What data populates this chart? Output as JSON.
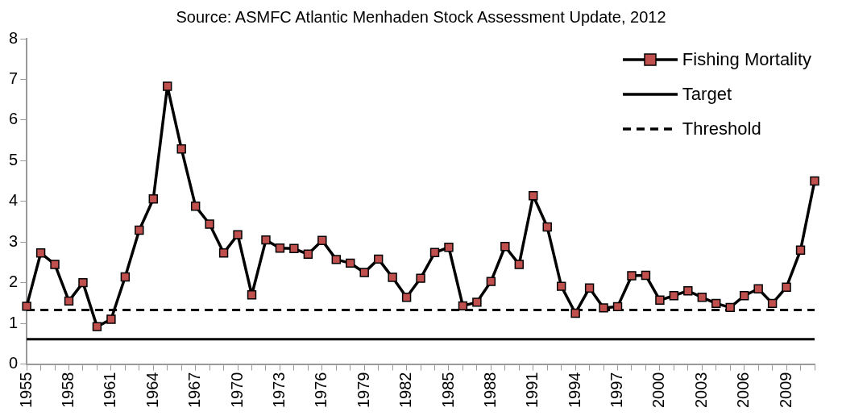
{
  "chart_data": {
    "type": "line",
    "annotations": [
      "Source:  ASMFC Atlantic Menhaden Stock Assessment Update, 2012"
    ],
    "categories": [
      "1955",
      null,
      null,
      "1958",
      null,
      null,
      "1961",
      null,
      null,
      "1964",
      null,
      null,
      "1967",
      null,
      null,
      "1970",
      null,
      null,
      "1973",
      null,
      null,
      "1976",
      null,
      null,
      "1979",
      null,
      null,
      "1982",
      null,
      null,
      "1985",
      null,
      null,
      "1988",
      null,
      null,
      "1991",
      null,
      null,
      "1994",
      null,
      null,
      "1997",
      null,
      null,
      "2000",
      null,
      null,
      "2003",
      null,
      null,
      "2006",
      null,
      null,
      "2009",
      null,
      null
    ],
    "series": [
      {
        "name": "Fishing Mortality",
        "color": "#c0504d",
        "marker": "square",
        "line_style": "solid",
        "values": [
          1.42,
          2.73,
          2.45,
          1.55,
          2.0,
          0.92,
          1.1,
          2.14,
          3.29,
          4.06,
          6.83,
          5.29,
          3.88,
          3.44,
          2.73,
          3.18,
          1.7,
          3.05,
          2.85,
          2.84,
          2.7,
          3.04,
          2.57,
          2.48,
          2.25,
          2.58,
          2.13,
          1.64,
          2.11,
          2.74,
          2.87,
          1.43,
          1.52,
          2.03,
          2.89,
          2.45,
          4.14,
          3.37,
          1.91,
          1.25,
          1.87,
          1.38,
          1.41,
          2.17,
          2.18,
          1.57,
          1.68,
          1.8,
          1.64,
          1.49,
          1.39,
          1.68,
          1.85,
          1.49,
          1.89,
          2.8,
          4.5
        ]
      },
      {
        "name": "Target",
        "color": "#000000",
        "marker": "none",
        "line_style": "solid",
        "values": [
          0.61,
          0.61,
          0.61,
          0.61,
          0.61,
          0.61,
          0.61,
          0.61,
          0.61,
          0.61,
          0.61,
          0.61,
          0.61,
          0.61,
          0.61,
          0.61,
          0.61,
          0.61,
          0.61,
          0.61,
          0.61,
          0.61,
          0.61,
          0.61,
          0.61,
          0.61,
          0.61,
          0.61,
          0.61,
          0.61,
          0.61,
          0.61,
          0.61,
          0.61,
          0.61,
          0.61,
          0.61,
          0.61,
          0.61,
          0.61,
          0.61,
          0.61,
          0.61,
          0.61,
          0.61,
          0.61,
          0.61,
          0.61,
          0.61,
          0.61,
          0.61,
          0.61,
          0.61,
          0.61,
          0.61,
          0.61,
          0.61
        ]
      },
      {
        "name": "Threshold",
        "color": "#000000",
        "marker": "none",
        "line_style": "dashed",
        "values": [
          1.33,
          1.33,
          1.33,
          1.33,
          1.33,
          1.33,
          1.33,
          1.33,
          1.33,
          1.33,
          1.33,
          1.33,
          1.33,
          1.33,
          1.33,
          1.33,
          1.33,
          1.33,
          1.33,
          1.33,
          1.33,
          1.33,
          1.33,
          1.33,
          1.33,
          1.33,
          1.33,
          1.33,
          1.33,
          1.33,
          1.33,
          1.33,
          1.33,
          1.33,
          1.33,
          1.33,
          1.33,
          1.33,
          1.33,
          1.33,
          1.33,
          1.33,
          1.33,
          1.33,
          1.33,
          1.33,
          1.33,
          1.33,
          1.33,
          1.33,
          1.33,
          1.33,
          1.33,
          1.33,
          1.33,
          1.33,
          1.33
        ]
      }
    ],
    "ylim": [
      0,
      8
    ],
    "yticks": [
      0,
      1,
      2,
      3,
      4,
      5,
      6,
      7,
      8
    ],
    "grid": false,
    "legend": "top right"
  }
}
